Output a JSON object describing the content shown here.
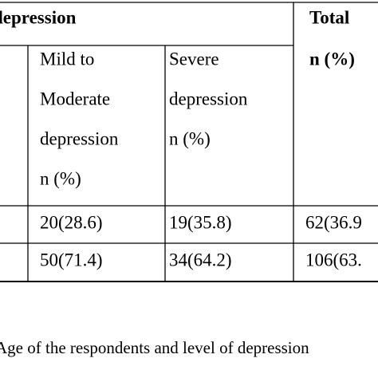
{
  "table": {
    "group_header": "depression",
    "total_header": [
      "Total",
      "n (%)"
    ],
    "mild_header": [
      "Mild to",
      "Moderate",
      "depression",
      "n (%)"
    ],
    "severe_header": [
      "Severe",
      "depression",
      "n (%)"
    ],
    "rows": [
      [
        "20(28.6)",
        "19(35.8)",
        "62(36.9"
      ],
      [
        "50(71.4)",
        "34(64.2)",
        "106(63."
      ]
    ]
  },
  "caption": "Age of the respondents and level of depression"
}
